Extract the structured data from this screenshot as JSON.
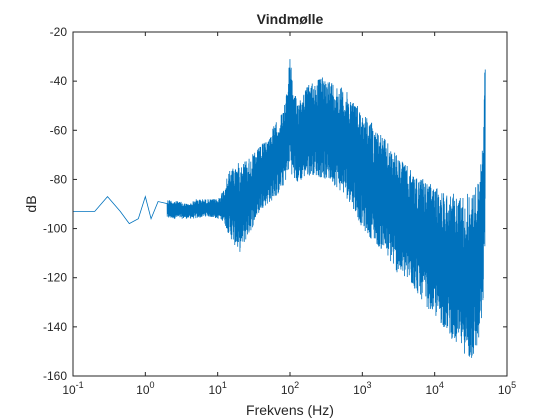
{
  "chart_data": {
    "type": "line",
    "title": "Vindmølle",
    "xlabel": "Frekvens (Hz)",
    "ylabel": "dB",
    "xscale": "log",
    "xlim": [
      0.1,
      100000
    ],
    "ylim": [
      -160,
      -20
    ],
    "grid": false,
    "line_color": "#0072BD",
    "xticks": [
      {
        "base": "10",
        "exp": "-1",
        "value": 0.1
      },
      {
        "base": "10",
        "exp": "0",
        "value": 1
      },
      {
        "base": "10",
        "exp": "1",
        "value": 10
      },
      {
        "base": "10",
        "exp": "2",
        "value": 100
      },
      {
        "base": "10",
        "exp": "3",
        "value": 1000
      },
      {
        "base": "10",
        "exp": "4",
        "value": 10000
      },
      {
        "base": "10",
        "exp": "5",
        "value": 100000
      }
    ],
    "yticks": [
      "-20",
      "-40",
      "-60",
      "-80",
      "-100",
      "-120",
      "-140",
      "-160"
    ],
    "series": [
      {
        "name": "",
        "note_band": "dense spectrum drawn as min/max envelope between y_low and y_high",
        "x": [
          0.1,
          0.2,
          0.3,
          0.45,
          0.6,
          0.8,
          1.0,
          1.2,
          1.5,
          2,
          3,
          4,
          5,
          7,
          10,
          12,
          15,
          20,
          30,
          40,
          50,
          60,
          70,
          80,
          90,
          100,
          110,
          130,
          150,
          200,
          300,
          400,
          500,
          700,
          1000,
          1500,
          2000,
          3000,
          5000,
          7000,
          10000,
          15000,
          20000,
          25000,
          30000,
          35000,
          40000,
          45000,
          48000,
          50000
        ],
        "y_high": [
          -93,
          -93,
          -87,
          -93,
          -98,
          -89,
          -87,
          -88,
          -89,
          -88,
          -89,
          -90,
          -88,
          -88,
          -88,
          -84,
          -75,
          -73,
          -70,
          -66,
          -63,
          -58,
          -55,
          -52,
          -45,
          -25,
          -45,
          -47,
          -44,
          -40,
          -38,
          -40,
          -42,
          -46,
          -52,
          -58,
          -63,
          -70,
          -77,
          -80,
          -83,
          -85,
          -86,
          -86,
          -85,
          -84,
          -80,
          -70,
          -50,
          -25
        ],
        "y_low": [
          -93,
          -93,
          -87,
          -93,
          -100,
          -96,
          -98,
          -96,
          -97,
          -96,
          -96,
          -96,
          -96,
          -95,
          -96,
          -97,
          -104,
          -110,
          -100,
          -92,
          -90,
          -88,
          -86,
          -83,
          -80,
          -75,
          -80,
          -82,
          -80,
          -78,
          -80,
          -82,
          -85,
          -90,
          -100,
          -106,
          -110,
          -118,
          -124,
          -130,
          -136,
          -142,
          -148,
          -150,
          -155,
          -153,
          -148,
          -140,
          -125,
          -105
        ]
      }
    ]
  }
}
